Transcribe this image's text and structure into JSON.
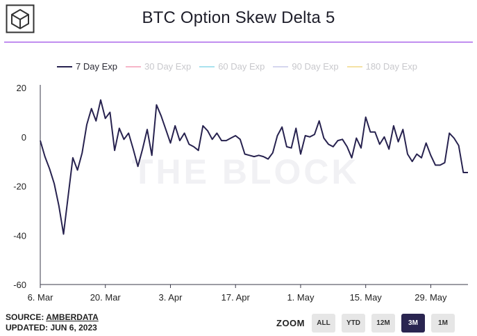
{
  "header": {
    "title": "BTC Option Skew Delta 5"
  },
  "watermark": "THE BLOCK",
  "footer": {
    "source_prefix": "SOURCE: ",
    "source_name": "AMBERDATA",
    "updated": "UPDATED: JUN 6, 2023"
  },
  "zoom": {
    "label": "ZOOM",
    "buttons": [
      "ALL",
      "YTD",
      "12M",
      "3M",
      "1M"
    ],
    "active": "3M"
  },
  "colors": {
    "rule": "#8a2be2",
    "axis": "#3a3a4a",
    "zoom_active": "#2a2550"
  },
  "chart_data": {
    "type": "line",
    "title": "BTC Option Skew Delta 5",
    "xlabel": "",
    "ylabel": "",
    "ylim": [
      -60,
      20
    ],
    "yticks": [
      20,
      0,
      -20,
      -40,
      -60
    ],
    "xlim": [
      "2023-03-06",
      "2023-06-06"
    ],
    "xtick_labels": [
      "6. Mar",
      "20. Mar",
      "3. Apr",
      "17. Apr",
      "1. May",
      "15. May",
      "29. May"
    ],
    "xtick_dates": [
      "2023-03-06",
      "2023-03-20",
      "2023-04-03",
      "2023-04-17",
      "2023-05-01",
      "2023-05-15",
      "2023-05-29"
    ],
    "legend_position": "top-left",
    "grid": false,
    "series": [
      {
        "name": "7 Day Exp",
        "color": "#27224f",
        "visible": true,
        "x": [
          "2023-03-06",
          "2023-03-07",
          "2023-03-08",
          "2023-03-09",
          "2023-03-10",
          "2023-03-11",
          "2023-03-12",
          "2023-03-13",
          "2023-03-14",
          "2023-03-15",
          "2023-03-16",
          "2023-03-17",
          "2023-03-18",
          "2023-03-19",
          "2023-03-20",
          "2023-03-21",
          "2023-03-22",
          "2023-03-23",
          "2023-03-24",
          "2023-03-25",
          "2023-03-26",
          "2023-03-27",
          "2023-03-28",
          "2023-03-29",
          "2023-03-30",
          "2023-03-31",
          "2023-04-01",
          "2023-04-02",
          "2023-04-03",
          "2023-04-04",
          "2023-04-05",
          "2023-04-06",
          "2023-04-07",
          "2023-04-08",
          "2023-04-09",
          "2023-04-10",
          "2023-04-11",
          "2023-04-12",
          "2023-04-13",
          "2023-04-14",
          "2023-04-15",
          "2023-04-16",
          "2023-04-17",
          "2023-04-18",
          "2023-04-19",
          "2023-04-20",
          "2023-04-21",
          "2023-04-22",
          "2023-04-23",
          "2023-04-24",
          "2023-04-25",
          "2023-04-26",
          "2023-04-27",
          "2023-04-28",
          "2023-04-29",
          "2023-04-30",
          "2023-05-01",
          "2023-05-02",
          "2023-05-03",
          "2023-05-04",
          "2023-05-05",
          "2023-05-06",
          "2023-05-07",
          "2023-05-08",
          "2023-05-09",
          "2023-05-10",
          "2023-05-11",
          "2023-05-12",
          "2023-05-13",
          "2023-05-14",
          "2023-05-15",
          "2023-05-16",
          "2023-05-17",
          "2023-05-18",
          "2023-05-19",
          "2023-05-20",
          "2023-05-21",
          "2023-05-22",
          "2023-05-23",
          "2023-05-24",
          "2023-05-25",
          "2023-05-26",
          "2023-05-27",
          "2023-05-28",
          "2023-05-29",
          "2023-05-30",
          "2023-05-31",
          "2023-06-01",
          "2023-06-02",
          "2023-06-03",
          "2023-06-04",
          "2023-06-05",
          "2023-06-06"
        ],
        "y": [
          -1.5,
          -8,
          -13,
          -19,
          -28,
          -39.5,
          -24,
          -8.5,
          -13.5,
          -6.5,
          5,
          11.5,
          6.5,
          15,
          7.5,
          10,
          -5.5,
          3.5,
          -1,
          1.5,
          -5,
          -12,
          -5,
          3,
          -7.5,
          13,
          8.5,
          3,
          -2.5,
          4.5,
          -1.5,
          1.5,
          -3,
          -4,
          -5.5,
          4.5,
          2.5,
          -1,
          1.5,
          -1.5,
          -1.5,
          -0.5,
          0.5,
          -1,
          -7,
          -7.5,
          -8,
          -7.5,
          -8,
          -9,
          -6.5,
          0.5,
          4,
          -4,
          -4.5,
          3.5,
          -7,
          0.5,
          0,
          1,
          6.5,
          -0.5,
          -3,
          -4,
          -1.5,
          -1,
          -4,
          -8.5,
          -0.5,
          -4.5,
          8,
          2,
          2,
          -3,
          0,
          -5,
          4.5,
          -2,
          3,
          -7,
          -10,
          -7,
          -8.5,
          -2.5,
          -7.5,
          -11.5,
          -11.5,
          -10.5,
          1.5,
          -0.5,
          -3.5,
          -14.5,
          -14.5
        ]
      },
      {
        "name": "30 Day Exp",
        "color": "#f7b5c8",
        "visible": false
      },
      {
        "name": "60 Day Exp",
        "color": "#a9e2ee",
        "visible": false
      },
      {
        "name": "90 Day Exp",
        "color": "#d5d6ee",
        "visible": false
      },
      {
        "name": "180 Day Exp",
        "color": "#f4e2a4",
        "visible": false
      }
    ]
  }
}
